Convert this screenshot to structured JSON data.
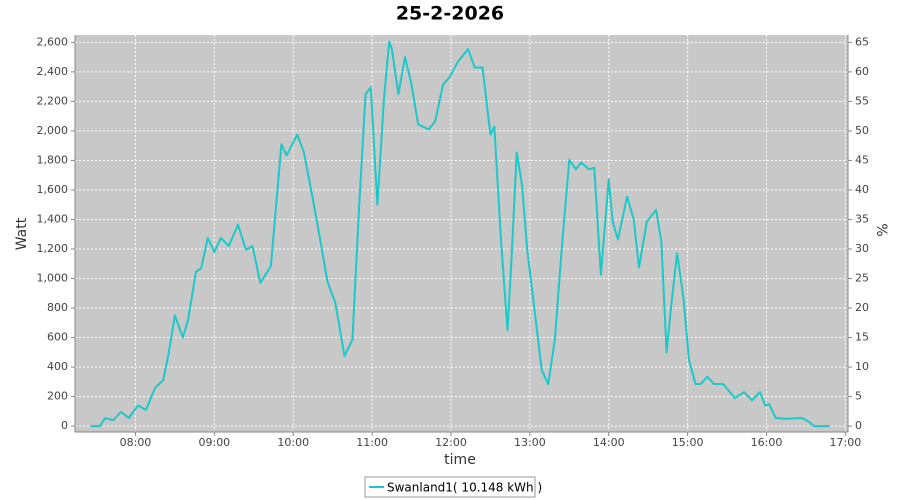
{
  "chart_data": {
    "type": "line",
    "title": "25-2-2026",
    "x_label": "time",
    "y_label": "Watt",
    "y2_label": "%",
    "x": [
      "07:26",
      "07:33",
      "07:37",
      "07:43",
      "07:49",
      "07:55",
      "08:02",
      "08:08",
      "08:11",
      "08:15",
      "08:21",
      "08:25",
      "08:30",
      "08:36",
      "08:40",
      "08:46",
      "08:50",
      "08:55",
      "09:00",
      "09:05",
      "09:11",
      "09:18",
      "09:24",
      "09:29",
      "09:35",
      "09:43",
      "09:51",
      "09:55",
      "10:03",
      "10:08",
      "10:15",
      "10:20",
      "10:26",
      "10:32",
      "10:39",
      "10:45",
      "10:50",
      "10:55",
      "10:59",
      "11:04",
      "11:09",
      "11:13",
      "11:15",
      "11:20",
      "11:25",
      "11:30",
      "11:35",
      "11:43",
      "11:48",
      "11:54",
      "11:59",
      "12:05",
      "12:13",
      "12:18",
      "12:24",
      "12:30",
      "12:33",
      "12:38",
      "12:43",
      "12:46",
      "12:50",
      "12:54",
      "12:58",
      "13:04",
      "13:09",
      "13:14",
      "13:19",
      "13:24",
      "13:30",
      "13:35",
      "13:39",
      "13:45",
      "13:49",
      "13:54",
      "14:00",
      "14:03",
      "14:07",
      "14:14",
      "14:19",
      "14:23",
      "14:29",
      "14:36",
      "14:40",
      "14:44",
      "14:48",
      "14:52",
      "14:57",
      "15:01",
      "15:06",
      "15:10",
      "15:15",
      "15:20",
      "15:27",
      "15:36",
      "15:43",
      "15:49",
      "15:55",
      "15:59",
      "16:02",
      "16:07",
      "16:14",
      "16:27",
      "16:33",
      "16:36",
      "16:48"
    ],
    "series": [
      {
        "name": "Swanland1( 10.148 kWh )",
        "color": "#1cc8c8",
        "values": [
          0,
          0,
          55,
          40,
          95,
          55,
          140,
          110,
          175,
          260,
          310,
          480,
          750,
          600,
          720,
          1045,
          1070,
          1275,
          1180,
          1275,
          1220,
          1365,
          1195,
          1220,
          970,
          1085,
          1910,
          1835,
          1975,
          1860,
          1535,
          1290,
          980,
          835,
          475,
          585,
          1465,
          2250,
          2295,
          1500,
          2215,
          2605,
          2555,
          2250,
          2500,
          2315,
          2045,
          2010,
          2065,
          2315,
          2365,
          2465,
          2555,
          2430,
          2430,
          1975,
          2030,
          1265,
          650,
          1125,
          1855,
          1635,
          1195,
          755,
          380,
          285,
          585,
          1175,
          1805,
          1740,
          1785,
          1740,
          1750,
          1025,
          1670,
          1385,
          1265,
          1555,
          1400,
          1075,
          1385,
          1465,
          1250,
          500,
          855,
          1170,
          855,
          450,
          285,
          285,
          335,
          285,
          285,
          190,
          230,
          175,
          230,
          140,
          150,
          55,
          50,
          55,
          25,
          0,
          0
        ]
      }
    ],
    "xlim": [
      "07:14",
      "17:02"
    ],
    "xticks": [
      "08:00",
      "09:00",
      "10:00",
      "11:00",
      "12:00",
      "13:00",
      "14:00",
      "15:00",
      "16:00",
      "17:00"
    ],
    "ylim": [
      -40,
      2650
    ],
    "yticks": [
      0,
      200,
      400,
      600,
      800,
      {
        "value": 1000,
        "label": "1,000"
      },
      {
        "value": 1200,
        "label": "1,200"
      },
      {
        "value": 1400,
        "label": "1,400"
      },
      {
        "value": 1600,
        "label": "1,600"
      },
      {
        "value": 1800,
        "label": "1,800"
      },
      {
        "value": 2000,
        "label": "2,000"
      },
      {
        "value": 2200,
        "label": "2,200"
      },
      {
        "value": 2400,
        "label": "2,400"
      },
      {
        "value": 2600,
        "label": "2,600"
      }
    ],
    "y2lim": [
      -1,
      66.25
    ],
    "y2ticks": [
      0,
      5,
      10,
      15,
      20,
      25,
      30,
      35,
      40,
      45,
      50,
      55,
      60,
      65
    ],
    "grid": true,
    "legend": "bottom"
  }
}
